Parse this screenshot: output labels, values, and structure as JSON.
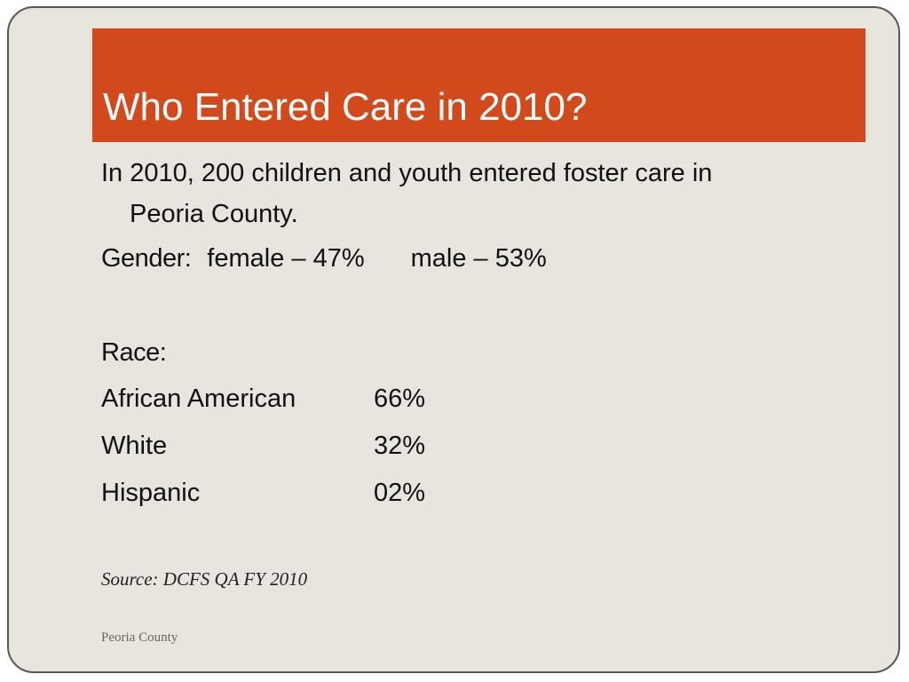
{
  "slide": {
    "title": "Who Entered Care in 2010?",
    "intro": {
      "line1": "In 2010, 200 children and youth entered foster care in",
      "line2": "Peoria County."
    },
    "gender": {
      "label": "Gender:",
      "female": "female – 47%",
      "male": "male – 53%"
    },
    "race": {
      "heading": "Race:",
      "rows": [
        {
          "name": "African American",
          "percent": "66%"
        },
        {
          "name": "White",
          "percent": "32%"
        },
        {
          "name": "Hispanic",
          "percent": "02%"
        }
      ]
    },
    "source": "Source: DCFS QA FY 2010",
    "footer": "Peoria County",
    "colors": {
      "title_bar": "#d2491c",
      "background": "#e8e4de"
    }
  }
}
